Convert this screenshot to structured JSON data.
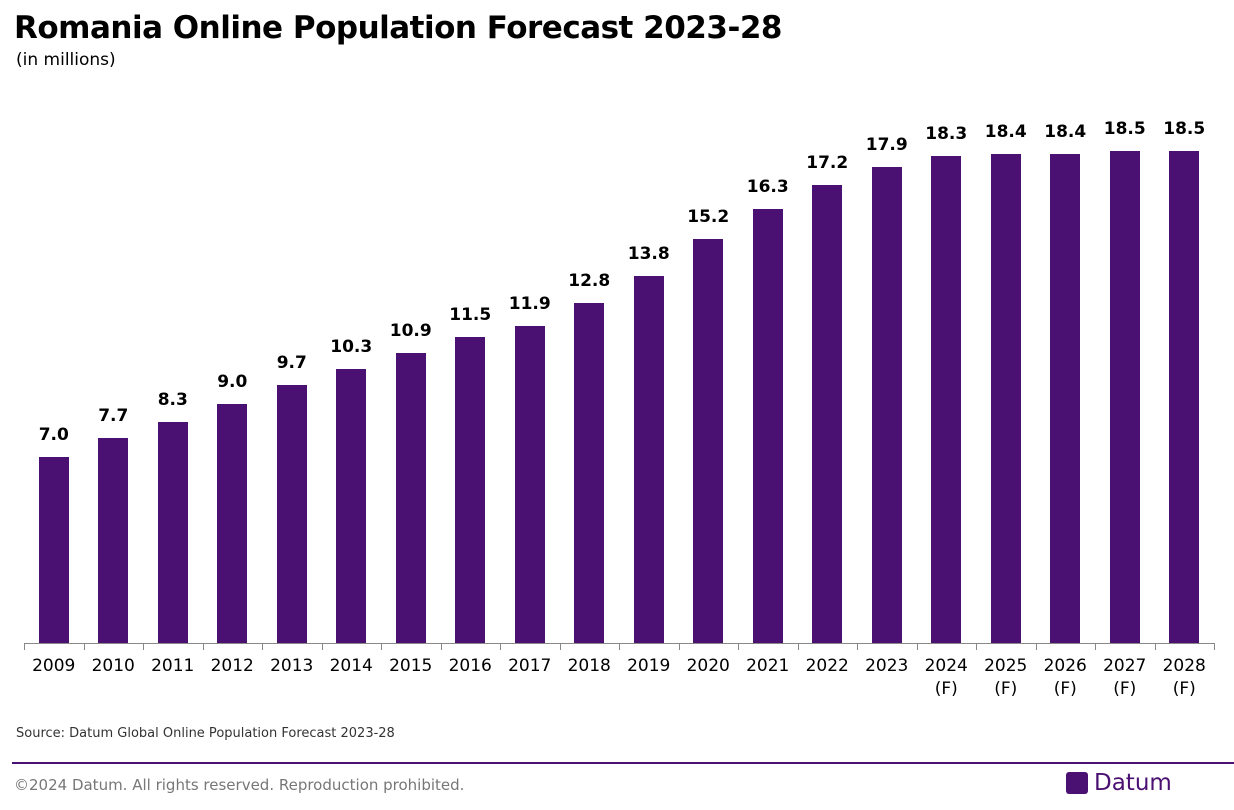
{
  "chart_data": {
    "type": "bar",
    "title": "Romania Online Population Forecast 2023-28",
    "subtitle": "(in millions)",
    "categories": [
      "2009",
      "2010",
      "2011",
      "2012",
      "2013",
      "2014",
      "2015",
      "2016",
      "2017",
      "2018",
      "2019",
      "2020",
      "2021",
      "2022",
      "2023",
      "2024\n(F)",
      "2025\n(F)",
      "2026\n(F)",
      "2027\n(F)",
      "2028\n(F)"
    ],
    "values": [
      7.0,
      7.7,
      8.3,
      9.0,
      9.7,
      10.3,
      10.9,
      11.5,
      11.9,
      12.8,
      13.8,
      15.2,
      16.3,
      17.2,
      17.9,
      18.3,
      18.4,
      18.4,
      18.5,
      18.5
    ],
    "value_labels": [
      "7.0",
      "7.7",
      "8.3",
      "9.0",
      "9.7",
      "10.3",
      "10.9",
      "11.5",
      "11.9",
      "12.8",
      "13.8",
      "15.2",
      "16.3",
      "17.2",
      "17.9",
      "18.3",
      "18.4",
      "18.4",
      "18.5",
      "18.5"
    ],
    "color": "#4a1072",
    "source": "Source: Datum Global Online Population Forecast 2023-28"
  },
  "footer": {
    "copyright": "©2024 Datum. All rights reserved. Reproduction prohibited.",
    "brand": "Datum"
  }
}
